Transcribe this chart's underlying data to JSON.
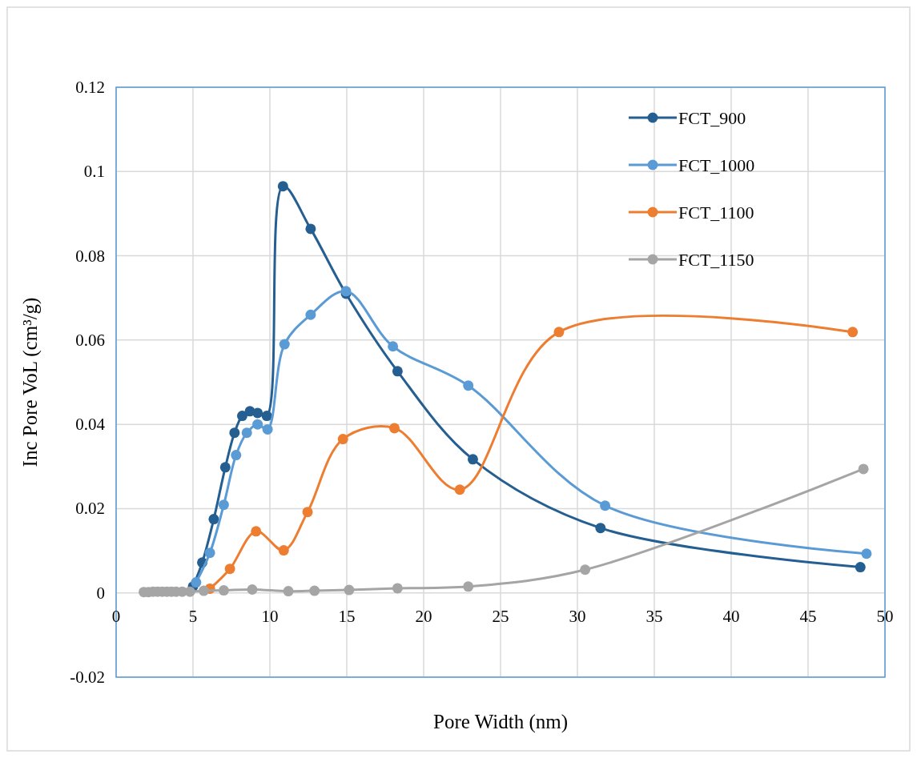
{
  "chart_data": {
    "type": "line",
    "xlabel": "Pore Width (nm)",
    "ylabel": "Inc Pore VoL (cm³/g)",
    "xlim": [
      0,
      50
    ],
    "xticks": [
      0,
      5,
      10,
      15,
      20,
      25,
      30,
      35,
      40,
      45,
      50
    ],
    "ylim": [
      -0.02,
      0.12
    ],
    "yticks": [
      -0.02,
      0,
      0.02,
      0.04,
      0.06,
      0.08,
      0.1,
      0.12
    ],
    "grid": true,
    "legend": "top right",
    "marker": "circle",
    "line_style": "solid",
    "series": [
      {
        "name": "FCT_900",
        "color": "#255e91",
        "x": [
          5,
          5.6,
          6.35,
          7.1,
          7.7,
          8.2,
          8.7,
          9.2,
          9.8,
          10.85,
          12.65,
          14.95,
          18.3,
          23.2,
          31.5,
          48.4
        ],
        "values": [
          0.0015,
          0.0072,
          0.0175,
          0.0298,
          0.038,
          0.042,
          0.0431,
          0.0427,
          0.042,
          0.0965,
          0.0864,
          0.071,
          0.0526,
          0.0317,
          0.0154,
          0.0061
        ]
      },
      {
        "name": "FCT_1000",
        "color": "#5b9bd5",
        "x": [
          5.2,
          6.1,
          7.0,
          7.8,
          8.5,
          9.2,
          9.85,
          10.95,
          12.65,
          14.95,
          18.0,
          22.9,
          31.8,
          48.8
        ],
        "values": [
          0.0025,
          0.0095,
          0.0209,
          0.0327,
          0.038,
          0.04,
          0.0388,
          0.059,
          0.066,
          0.0716,
          0.0585,
          0.0492,
          0.0207,
          0.0093
        ]
      },
      {
        "name": "FCT_1100",
        "color": "#ed7d31",
        "x": [
          6.1,
          7.4,
          9.1,
          10.9,
          12.45,
          14.75,
          18.1,
          22.35,
          28.8,
          47.9
        ],
        "values": [
          0.001,
          0.0057,
          0.0146,
          0.0101,
          0.0192,
          0.0365,
          0.0391,
          0.0245,
          0.0619,
          0.0619
        ]
      },
      {
        "name": "FCT_1150",
        "color": "#a5a5a5",
        "x": [
          1.8,
          2.1,
          2.4,
          2.7,
          3.0,
          3.3,
          3.6,
          3.9,
          4.3,
          4.8,
          5.7,
          7.0,
          8.85,
          11.2,
          12.9,
          15.15,
          18.3,
          22.9,
          30.5,
          48.6
        ],
        "values": [
          0.0002,
          0.0002,
          0.0003,
          0.0003,
          0.0003,
          0.0003,
          0.0003,
          0.0003,
          0.0003,
          0.0003,
          0.0005,
          0.0006,
          0.0008,
          0.0004,
          0.0005,
          0.0007,
          0.0011,
          0.0015,
          0.0055,
          0.0294
        ]
      }
    ]
  }
}
